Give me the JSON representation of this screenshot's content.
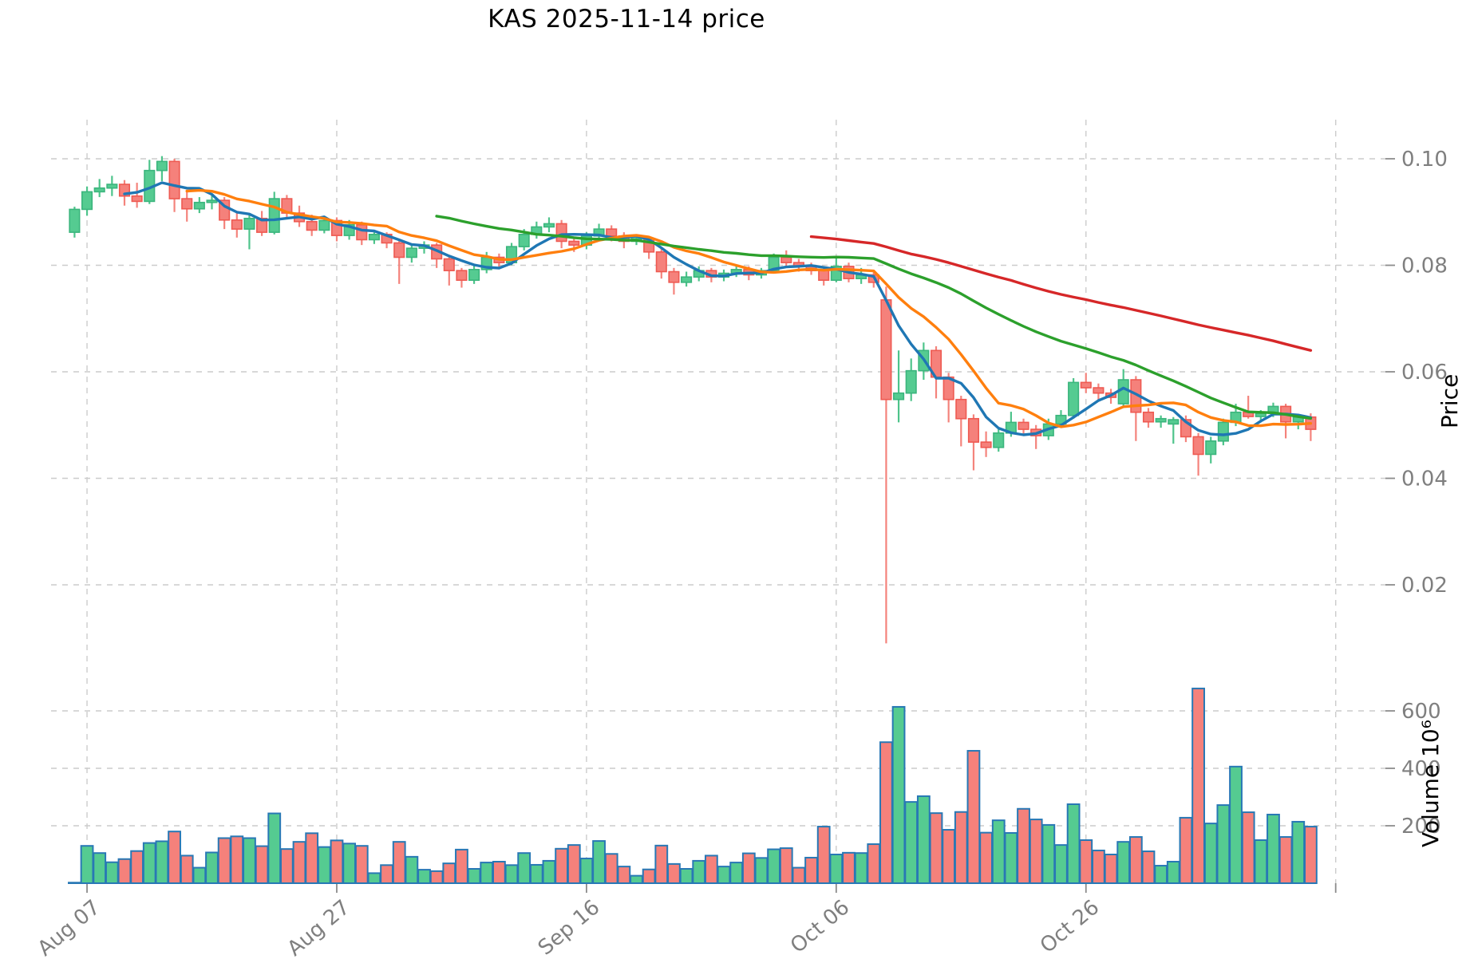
{
  "title": "KAS  2025-11-14  price",
  "price_axis": {
    "label": "Price",
    "ticks": [
      0.02,
      0.04,
      0.06,
      0.08,
      0.1
    ]
  },
  "volume_axis": {
    "label": "Volume  10⁶",
    "ticks": [
      200,
      400,
      600
    ]
  },
  "x_axis": {
    "ticks": [
      {
        "label": "Aug 07",
        "index": 1
      },
      {
        "label": "Aug 27",
        "index": 21
      },
      {
        "label": "Sep 16",
        "index": 41
      },
      {
        "label": "Oct 06",
        "index": 61
      },
      {
        "label": "Oct 26",
        "index": 81
      },
      {
        "label": "",
        "index": 101
      }
    ]
  },
  "colors": {
    "up_fill": "#55cb91",
    "up_edge": "#3bb57d",
    "up_wick": "#4ec48b",
    "down_fill": "#f5817b",
    "down_edge": "#ee5a52",
    "down_wick": "#f4837c",
    "volume_edge": "#2878b5",
    "grid": "#cccccc",
    "tick_mark": "#8c8c8c",
    "tick_label": "#7f7f7f",
    "title_color": "#000000",
    "mav_colors": [
      "#1f77b4",
      "#ff7f0e",
      "#2ca02c",
      "#d62728"
    ]
  },
  "mav_windows": [
    5,
    10,
    30,
    60
  ],
  "chart_data": {
    "type": "candlestick",
    "title": "KAS  2025-11-14  price",
    "ylabel": "Price",
    "ylabel_volume": "Volume  10⁶",
    "price_ylim": [
      0.0085,
      0.102
    ],
    "volume_ylim": [
      0,
      700
    ],
    "grid": true,
    "candle_fields": [
      "date",
      "open",
      "high",
      "low",
      "close",
      "volume_millions"
    ],
    "candles": [
      [
        "Aug 06",
        0.0862,
        0.091,
        0.0852,
        0.0905,
        2
      ],
      [
        "Aug 07",
        0.0905,
        0.0948,
        0.0893,
        0.0938,
        130
      ],
      [
        "Aug 08",
        0.0938,
        0.0962,
        0.0928,
        0.0945,
        105
      ],
      [
        "Aug 09",
        0.0945,
        0.0968,
        0.093,
        0.0952,
        73
      ],
      [
        "Aug 10",
        0.0952,
        0.096,
        0.0912,
        0.093,
        84
      ],
      [
        "Aug 11",
        0.093,
        0.0955,
        0.0908,
        0.092,
        112
      ],
      [
        "Aug 12",
        0.092,
        0.0998,
        0.0915,
        0.0978,
        140
      ],
      [
        "Aug 13",
        0.0978,
        0.1005,
        0.0958,
        0.0995,
        146
      ],
      [
        "Aug 14",
        0.0995,
        0.1,
        0.09,
        0.0925,
        180
      ],
      [
        "Aug 15",
        0.0925,
        0.0938,
        0.0882,
        0.0906,
        96
      ],
      [
        "Aug 16",
        0.0906,
        0.0928,
        0.0898,
        0.0918,
        54
      ],
      [
        "Aug 17",
        0.0918,
        0.0935,
        0.0905,
        0.0922,
        107
      ],
      [
        "Aug 18",
        0.0922,
        0.0928,
        0.0868,
        0.0885,
        157
      ],
      [
        "Aug 19",
        0.0885,
        0.0898,
        0.0852,
        0.0868,
        163
      ],
      [
        "Aug 20",
        0.0868,
        0.0895,
        0.083,
        0.0888,
        157
      ],
      [
        "Aug 21",
        0.0888,
        0.0902,
        0.0855,
        0.0862,
        129
      ],
      [
        "Aug 22",
        0.0862,
        0.0938,
        0.0858,
        0.0925,
        243
      ],
      [
        "Aug 23",
        0.0925,
        0.0932,
        0.0888,
        0.0898,
        119
      ],
      [
        "Aug 24",
        0.0898,
        0.0912,
        0.0872,
        0.0882,
        144
      ],
      [
        "Aug 25",
        0.0882,
        0.0895,
        0.0855,
        0.0866,
        174
      ],
      [
        "Aug 26",
        0.0866,
        0.0892,
        0.086,
        0.0884,
        126
      ],
      [
        "Aug 27",
        0.0884,
        0.089,
        0.0845,
        0.0856,
        149
      ],
      [
        "Aug 28",
        0.0856,
        0.0885,
        0.0848,
        0.0876,
        138
      ],
      [
        "Aug 29",
        0.0876,
        0.0882,
        0.0838,
        0.0848,
        130
      ],
      [
        "Aug 30",
        0.0848,
        0.0865,
        0.084,
        0.0858,
        35
      ],
      [
        "Aug 31",
        0.0858,
        0.0862,
        0.0832,
        0.0842,
        63
      ],
      [
        "Sep 01",
        0.0842,
        0.0848,
        0.0765,
        0.0815,
        144
      ],
      [
        "Sep 02",
        0.0815,
        0.084,
        0.0805,
        0.0832,
        92
      ],
      [
        "Sep 03",
        0.0832,
        0.0845,
        0.0822,
        0.0838,
        47
      ],
      [
        "Sep 04",
        0.0838,
        0.0842,
        0.0795,
        0.0812,
        42
      ],
      [
        "Sep 05",
        0.0812,
        0.0818,
        0.0762,
        0.079,
        69
      ],
      [
        "Sep 06",
        0.079,
        0.0795,
        0.0758,
        0.0772,
        117
      ],
      [
        "Sep 07",
        0.0772,
        0.08,
        0.0765,
        0.0792,
        50
      ],
      [
        "Sep 08",
        0.0792,
        0.0825,
        0.0785,
        0.0815,
        72
      ],
      [
        "Sep 09",
        0.0815,
        0.0822,
        0.0795,
        0.0805,
        75
      ],
      [
        "Sep 10",
        0.0805,
        0.0842,
        0.08,
        0.0835,
        63
      ],
      [
        "Sep 11",
        0.0835,
        0.0868,
        0.0828,
        0.0858,
        105
      ],
      [
        "Sep 12",
        0.0858,
        0.0882,
        0.085,
        0.0872,
        64
      ],
      [
        "Sep 13",
        0.0872,
        0.089,
        0.0862,
        0.0878,
        78
      ],
      [
        "Sep 14",
        0.0878,
        0.0885,
        0.0832,
        0.0845,
        120
      ],
      [
        "Sep 15",
        0.0845,
        0.0852,
        0.0825,
        0.0838,
        133
      ],
      [
        "Sep 16",
        0.0838,
        0.0862,
        0.083,
        0.0855,
        86
      ],
      [
        "Sep 17",
        0.0855,
        0.0878,
        0.0848,
        0.0868,
        147
      ],
      [
        "Sep 18",
        0.0868,
        0.0875,
        0.0845,
        0.0855,
        102
      ],
      [
        "Sep 19",
        0.0855,
        0.0862,
        0.0832,
        0.0845,
        58
      ],
      [
        "Sep 20",
        0.0845,
        0.0858,
        0.0838,
        0.085,
        26
      ],
      [
        "Sep 21",
        0.085,
        0.0855,
        0.0812,
        0.0825,
        48
      ],
      [
        "Sep 22",
        0.0825,
        0.0832,
        0.0775,
        0.0788,
        131
      ],
      [
        "Sep 23",
        0.0788,
        0.0795,
        0.0745,
        0.0768,
        67
      ],
      [
        "Sep 24",
        0.0768,
        0.0788,
        0.076,
        0.0778,
        50
      ],
      [
        "Sep 25",
        0.0778,
        0.0798,
        0.077,
        0.079,
        78
      ],
      [
        "Sep 26",
        0.079,
        0.0795,
        0.0768,
        0.0778,
        96
      ],
      [
        "Sep 27",
        0.0778,
        0.0792,
        0.077,
        0.0785,
        58
      ],
      [
        "Sep 28",
        0.0785,
        0.08,
        0.0778,
        0.0792,
        72
      ],
      [
        "Sep 29",
        0.0792,
        0.0798,
        0.0772,
        0.0782,
        104
      ],
      [
        "Sep 30",
        0.0782,
        0.0795,
        0.0775,
        0.079,
        88
      ],
      [
        "Oct 01",
        0.079,
        0.0822,
        0.0785,
        0.0815,
        118
      ],
      [
        "Oct 02",
        0.0815,
        0.0828,
        0.0798,
        0.0805,
        122
      ],
      [
        "Oct 03",
        0.0805,
        0.0812,
        0.0788,
        0.0798,
        54
      ],
      [
        "Oct 04",
        0.0798,
        0.0805,
        0.0782,
        0.079,
        89
      ],
      [
        "Oct 05",
        0.079,
        0.0795,
        0.0762,
        0.0772,
        197
      ],
      [
        "Oct 06",
        0.0772,
        0.0815,
        0.0768,
        0.0798,
        100
      ],
      [
        "Oct 07",
        0.0798,
        0.0805,
        0.0768,
        0.0775,
        106
      ],
      [
        "Oct 08",
        0.0775,
        0.0795,
        0.0765,
        0.0782,
        105
      ],
      [
        "Oct 09",
        0.0782,
        0.0788,
        0.0758,
        0.0768,
        136
      ],
      [
        "Oct 10",
        0.0735,
        0.076,
        0.009,
        0.0548,
        491
      ],
      [
        "Oct 11",
        0.0548,
        0.064,
        0.0505,
        0.056,
        614
      ],
      [
        "Oct 12",
        0.056,
        0.0625,
        0.0545,
        0.0602,
        283
      ],
      [
        "Oct 13",
        0.0602,
        0.0655,
        0.0585,
        0.064,
        303
      ],
      [
        "Oct 14",
        0.064,
        0.0648,
        0.055,
        0.059,
        244
      ],
      [
        "Oct 15",
        0.059,
        0.0598,
        0.0505,
        0.0548,
        186
      ],
      [
        "Oct 16",
        0.0548,
        0.0555,
        0.046,
        0.0512,
        248
      ],
      [
        "Oct 17",
        0.0512,
        0.052,
        0.0415,
        0.0468,
        461
      ],
      [
        "Oct 18",
        0.0468,
        0.0488,
        0.044,
        0.0458,
        176
      ],
      [
        "Oct 19",
        0.0458,
        0.0495,
        0.045,
        0.0485,
        219
      ],
      [
        "Oct 20",
        0.0485,
        0.0525,
        0.0478,
        0.0505,
        175
      ],
      [
        "Oct 21",
        0.0505,
        0.0512,
        0.0482,
        0.0492,
        259
      ],
      [
        "Oct 22",
        0.0492,
        0.05,
        0.0455,
        0.048,
        222
      ],
      [
        "Oct 23",
        0.048,
        0.0512,
        0.0472,
        0.0502,
        203
      ],
      [
        "Oct 24",
        0.0502,
        0.0528,
        0.0495,
        0.0518,
        133
      ],
      [
        "Oct 25",
        0.0518,
        0.0588,
        0.0512,
        0.058,
        275
      ],
      [
        "Oct 26",
        0.058,
        0.0598,
        0.056,
        0.057,
        150
      ],
      [
        "Oct 27",
        0.057,
        0.0578,
        0.0548,
        0.056,
        114
      ],
      [
        "Oct 28",
        0.056,
        0.0568,
        0.054,
        0.0552,
        100
      ],
      [
        "Oct 29",
        0.054,
        0.0605,
        0.0535,
        0.0585,
        144
      ],
      [
        "Oct 30",
        0.0585,
        0.0592,
        0.047,
        0.0524,
        161
      ],
      [
        "Oct 31",
        0.0524,
        0.0532,
        0.0495,
        0.0506,
        111
      ],
      [
        "Nov 01",
        0.0506,
        0.0518,
        0.0495,
        0.0512,
        61
      ],
      [
        "Nov 02",
        0.0502,
        0.0515,
        0.0465,
        0.051,
        75
      ],
      [
        "Nov 03",
        0.051,
        0.0518,
        0.0468,
        0.0478,
        228
      ],
      [
        "Nov 04",
        0.0478,
        0.0485,
        0.0405,
        0.0445,
        678
      ],
      [
        "Nov 05",
        0.0445,
        0.0478,
        0.0428,
        0.047,
        208
      ],
      [
        "Nov 06",
        0.047,
        0.0512,
        0.0462,
        0.0505,
        272
      ],
      [
        "Nov 07",
        0.0505,
        0.054,
        0.0498,
        0.0524,
        406
      ],
      [
        "Nov 08",
        0.0524,
        0.0555,
        0.0512,
        0.0516,
        247
      ],
      [
        "Nov 09",
        0.0516,
        0.0528,
        0.0505,
        0.0522,
        150
      ],
      [
        "Nov 10",
        0.0522,
        0.0542,
        0.0515,
        0.0535,
        239
      ],
      [
        "Nov 11",
        0.0535,
        0.054,
        0.0475,
        0.0506,
        161
      ],
      [
        "Nov 12",
        0.0506,
        0.052,
        0.0492,
        0.0515,
        214
      ],
      [
        "Nov 13",
        0.0515,
        0.0522,
        0.047,
        0.0492,
        197
      ]
    ]
  }
}
